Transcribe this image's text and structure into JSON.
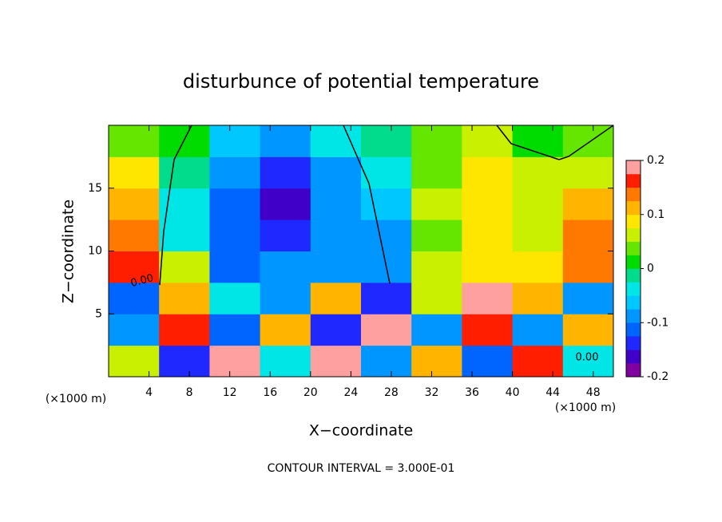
{
  "chart_data": {
    "type": "heatmap",
    "title": "disturbunce of potential temperature",
    "xlabel": "X−coordinate",
    "ylabel": "Z−coordinate",
    "xunit": "(×1000 m)",
    "xunit_right": "(×1000 m)",
    "footer": "CONTOUR INTERVAL = 3.000E-01",
    "contour_labels": [
      "0.00",
      "0.00"
    ],
    "x_bins": [
      0,
      5,
      10,
      15,
      20,
      25,
      30,
      35,
      40,
      45,
      50
    ],
    "y_bins": [
      0,
      2.5,
      5,
      7.5,
      10,
      12.5,
      15,
      17.5,
      20
    ],
    "values": [
      [
        0.05,
        -0.15,
        0.2,
        -0.05,
        0.2,
        -0.1,
        0.1,
        -0.12,
        0.15,
        -0.05
      ],
      [
        -0.1,
        0.15,
        -0.12,
        0.1,
        -0.15,
        0.2,
        -0.08,
        0.15,
        -0.1,
        0.12
      ],
      [
        -0.12,
        0.1,
        -0.05,
        -0.1,
        0.12,
        -0.15,
        0.05,
        0.18,
        0.1,
        -0.08
      ],
      [
        0.15,
        0.05,
        -0.12,
        -0.1,
        -0.09,
        -0.1,
        0.05,
        0.08,
        0.08,
        0.14
      ],
      [
        0.14,
        -0.05,
        -0.12,
        -0.15,
        -0.1,
        -0.08,
        0.04,
        0.08,
        0.07,
        0.13
      ],
      [
        0.12,
        -0.03,
        -0.12,
        -0.17,
        -0.1,
        -0.06,
        0.05,
        0.09,
        0.07,
        0.1
      ],
      [
        0.08,
        -0.02,
        -0.1,
        -0.14,
        -0.08,
        -0.04,
        0.04,
        0.09,
        0.06,
        0.07
      ],
      [
        0.04,
        0.0,
        -0.06,
        -0.08,
        -0.05,
        -0.02,
        0.03,
        0.07,
        0.02,
        0.03
      ]
    ],
    "xlim": [
      0,
      50
    ],
    "ylim": [
      0,
      20
    ],
    "xticks": [
      4,
      8,
      12,
      16,
      20,
      24,
      28,
      32,
      36,
      40,
      44,
      48
    ],
    "yticks": [
      5,
      10,
      15
    ],
    "zlim": [
      -0.2,
      0.2
    ],
    "zticks": [
      -0.2,
      -0.1,
      0,
      0.1,
      0.2
    ],
    "colorscale": [
      "#8000a0",
      "#4000c8",
      "#1e28ff",
      "#0064ff",
      "#0096ff",
      "#00c8ff",
      "#00e6e6",
      "#00dc8c",
      "#00dc00",
      "#64e600",
      "#c8f000",
      "#ffe600",
      "#ffb400",
      "#ff7800",
      "#ff1e00",
      "#ffa0a0"
    ]
  }
}
